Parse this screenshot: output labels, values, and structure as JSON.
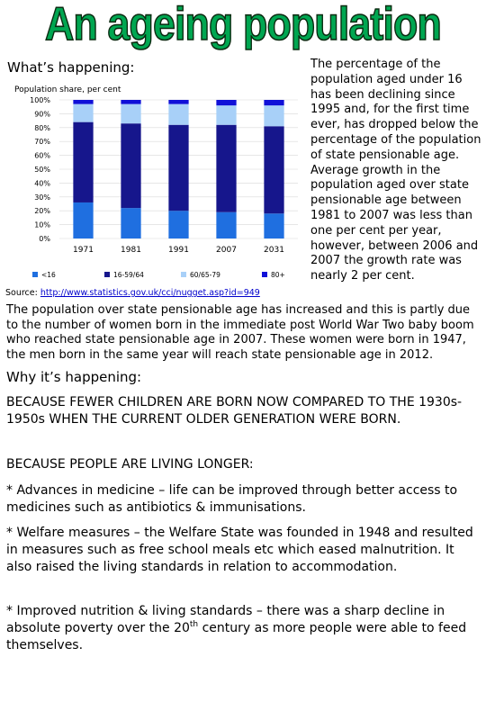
{
  "title": "An ageing population",
  "whats_heading": "What’s happening:",
  "chart_data": {
    "type": "bar",
    "stacked": true,
    "ylabel": "Population share, per cent",
    "ylim": [
      0,
      100
    ],
    "yticks": [
      "0%",
      "10%",
      "20%",
      "30%",
      "40%",
      "50%",
      "60%",
      "70%",
      "80%",
      "90%",
      "100%"
    ],
    "categories": [
      "1971",
      "1981",
      "1991",
      "2007",
      "2031"
    ],
    "series": [
      {
        "name": "<16",
        "color": "#1f6fe0",
        "values": [
          26,
          22,
          20,
          19,
          18
        ]
      },
      {
        "name": "16-59/64",
        "color": "#16168c",
        "values": [
          58,
          61,
          62,
          63,
          63
        ]
      },
      {
        "name": "60/65-79",
        "color": "#a8d0f8",
        "values": [
          13,
          14,
          15,
          14,
          15
        ]
      },
      {
        "name": "80+",
        "color": "#1010d8",
        "values": [
          3,
          3,
          3,
          4,
          4
        ]
      }
    ],
    "legend_position": "bottom"
  },
  "side_text": "The percentage of the population aged under 16 has been declining since 1995 and, for the first time ever, has dropped below the percentage of the population of state pensionable age. Average growth in the population aged over state pensionable age between 1981 to 2007 was less than one per cent per year, however, between 2006 and 2007 the growth rate was nearly 2 per cent.",
  "source_label": "Source:",
  "source_url": "http://www.statistics.gov.uk/cci/nugget.asp?id=949",
  "paragraph": "The population over state pensionable age has increased and this is partly due to the number of women born in the immediate post World War Two baby boom who reached state pensionable age in 2007. These women were born in 1947, the men born in the same year will reach state pensionable age in 2012.",
  "why_heading": "Why it’s happening:",
  "because1": "BECAUSE FEWER CHILDREN ARE BORN NOW COMPARED TO THE 1930s-1950s WHEN THE CURRENT OLDER GENERATION WERE BORN.",
  "because2": "BECAUSE PEOPLE ARE LIVING LONGER:",
  "bullet1": "* Advances in medicine – life can be improved through better access to medicines such as antibiotics & immunisations.",
  "bullet2": "* Welfare measures – the Welfare State was founded in 1948 and resulted in measures such as free school meals etc which eased malnutrition. It also raised the living standards in relation to accommodation.",
  "bullet3_a": "* Improved nutrition & living standards – there was a sharp decline in absolute poverty over the 20",
  "bullet3_sup": "th",
  "bullet3_b": " century as more people were able to feed themselves."
}
